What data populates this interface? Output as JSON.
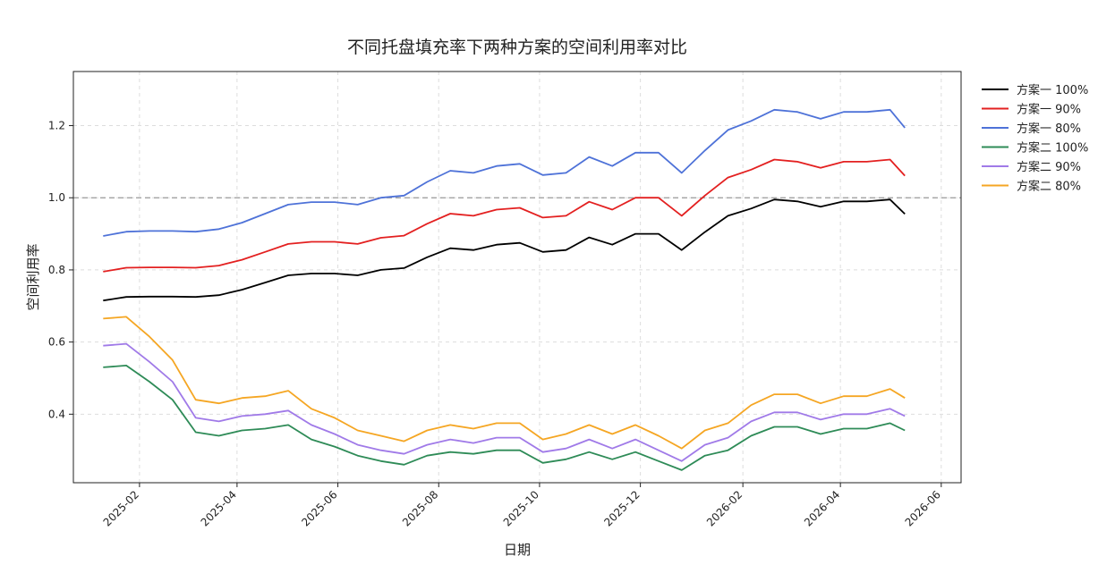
{
  "chart_data": {
    "type": "line",
    "title": "不同托盘填充率下两种方案的空间利用率对比",
    "xlabel": "日期",
    "ylabel": "空间利用率",
    "x_ticks": [
      "2025-02",
      "2025-04",
      "2025-06",
      "2025-08",
      "2025-10",
      "2025-12",
      "2026-02",
      "2026-04",
      "2026-06"
    ],
    "y_ticks": [
      "0.4",
      "0.6",
      "0.8",
      "1.0",
      "1.2"
    ],
    "xlim": [
      "2024-12-23",
      "2026-06-13"
    ],
    "ylim": [
      0.21,
      1.35
    ],
    "grid": true,
    "reference_line": {
      "y": 1.0,
      "style": "dashed",
      "color": "#999999"
    },
    "legend_position": "outside-right-top",
    "x": [
      "2025-01-10",
      "2025-01-24",
      "2025-02-07",
      "2025-02-21",
      "2025-03-07",
      "2025-03-21",
      "2025-04-04",
      "2025-04-18",
      "2025-05-02",
      "2025-05-16",
      "2025-05-30",
      "2025-06-13",
      "2025-06-27",
      "2025-07-11",
      "2025-07-25",
      "2025-08-08",
      "2025-08-22",
      "2025-09-05",
      "2025-09-19",
      "2025-10-03",
      "2025-10-17",
      "2025-10-31",
      "2025-11-14",
      "2025-11-28",
      "2025-12-12",
      "2025-12-26",
      "2026-01-09",
      "2026-01-23",
      "2026-02-06",
      "2026-02-20",
      "2026-03-06",
      "2026-03-20",
      "2026-04-03",
      "2026-04-17",
      "2026-05-01",
      "2026-05-10"
    ],
    "series": [
      {
        "name": "方案一 100%",
        "color": "#000000",
        "values": [
          0.715,
          0.725,
          0.726,
          0.726,
          0.725,
          0.73,
          0.745,
          0.765,
          0.785,
          0.79,
          0.79,
          0.785,
          0.8,
          0.805,
          0.835,
          0.86,
          0.855,
          0.87,
          0.875,
          0.85,
          0.855,
          0.89,
          0.87,
          0.9,
          0.9,
          0.855,
          0.905,
          0.95,
          0.97,
          0.995,
          0.99,
          0.975,
          0.99,
          0.99,
          0.995,
          0.955
        ]
      },
      {
        "name": "方案一 90%",
        "color": "#e32020",
        "values": [
          0.795,
          0.806,
          0.807,
          0.807,
          0.806,
          0.812,
          0.828,
          0.85,
          0.872,
          0.878,
          0.878,
          0.872,
          0.889,
          0.895,
          0.928,
          0.956,
          0.95,
          0.967,
          0.972,
          0.945,
          0.95,
          0.989,
          0.967,
          1.0,
          1.0,
          0.95,
          1.006,
          1.056,
          1.078,
          1.106,
          1.1,
          1.083,
          1.1,
          1.1,
          1.106,
          1.061
        ]
      },
      {
        "name": "方案一 80%",
        "color": "#4e72d8",
        "values": [
          0.894,
          0.906,
          0.908,
          0.908,
          0.906,
          0.913,
          0.931,
          0.956,
          0.981,
          0.988,
          0.988,
          0.981,
          1.0,
          1.006,
          1.044,
          1.075,
          1.069,
          1.088,
          1.094,
          1.063,
          1.069,
          1.113,
          1.088,
          1.125,
          1.125,
          1.069,
          1.131,
          1.188,
          1.213,
          1.244,
          1.238,
          1.219,
          1.238,
          1.238,
          1.244,
          1.194
        ]
      },
      {
        "name": "方案二 100%",
        "color": "#2e8b57",
        "values": [
          0.53,
          0.535,
          0.49,
          0.44,
          0.35,
          0.34,
          0.355,
          0.36,
          0.37,
          0.33,
          0.31,
          0.285,
          0.27,
          0.26,
          0.285,
          0.295,
          0.29,
          0.3,
          0.3,
          0.265,
          0.275,
          0.295,
          0.275,
          0.295,
          0.27,
          0.245,
          0.285,
          0.3,
          0.34,
          0.365,
          0.365,
          0.345,
          0.36,
          0.36,
          0.375,
          0.355
        ]
      },
      {
        "name": "方案二 90%",
        "color": "#a07ae8",
        "values": [
          0.59,
          0.595,
          0.545,
          0.49,
          0.39,
          0.38,
          0.395,
          0.4,
          0.41,
          0.37,
          0.345,
          0.315,
          0.3,
          0.29,
          0.315,
          0.33,
          0.32,
          0.335,
          0.335,
          0.295,
          0.305,
          0.33,
          0.305,
          0.33,
          0.3,
          0.27,
          0.315,
          0.335,
          0.38,
          0.405,
          0.405,
          0.385,
          0.4,
          0.4,
          0.415,
          0.395
        ]
      },
      {
        "name": "方案二 80%",
        "color": "#f5a623",
        "values": [
          0.665,
          0.67,
          0.615,
          0.55,
          0.44,
          0.43,
          0.445,
          0.45,
          0.465,
          0.415,
          0.39,
          0.355,
          0.34,
          0.325,
          0.355,
          0.37,
          0.36,
          0.375,
          0.375,
          0.33,
          0.345,
          0.37,
          0.345,
          0.37,
          0.34,
          0.305,
          0.355,
          0.375,
          0.425,
          0.455,
          0.455,
          0.43,
          0.45,
          0.45,
          0.47,
          0.445
        ]
      }
    ]
  }
}
